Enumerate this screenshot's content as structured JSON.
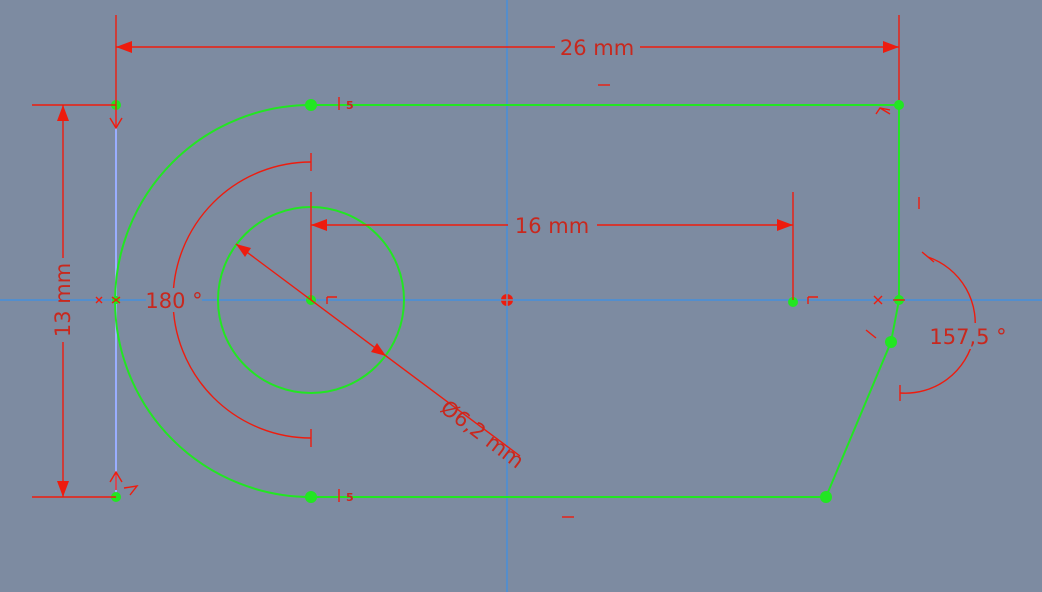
{
  "sketch": {
    "dimensions": {
      "width_label": "26 mm",
      "height_label": "13 mm",
      "hole_offset_label": "16 mm",
      "diameter_label": "Ø6,2 mm",
      "arc_angle_label": "180 °",
      "corner_angle_label": "157,5 °"
    },
    "constraints": {
      "equal_top": "5",
      "equal_bottom": "5"
    },
    "colors": {
      "background": "#7d8ba1",
      "geometry": "#22e622",
      "dimension": "#ee1c0e",
      "axis": "#3a8fe8",
      "construction": "#9aaeff"
    }
  }
}
